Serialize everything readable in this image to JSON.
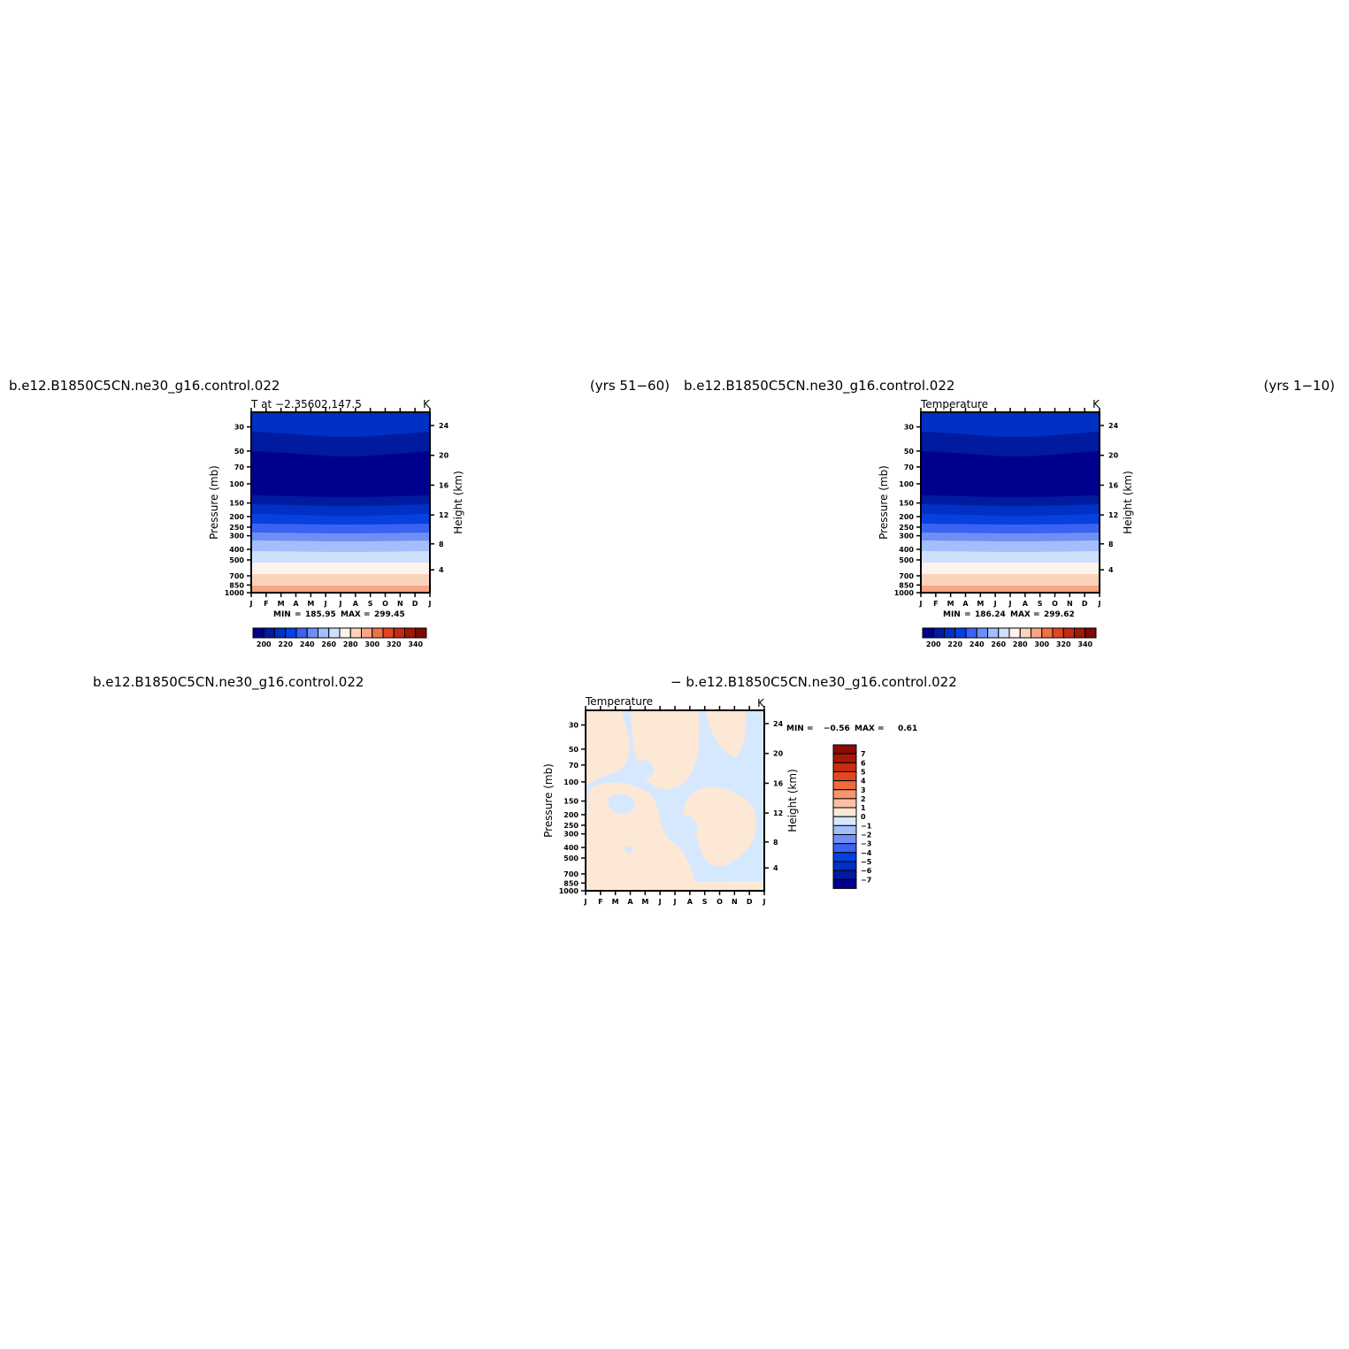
{
  "palette": {
    "abs": [
      "#00008e",
      "#001aa0",
      "#0030c4",
      "#0540e0",
      "#3b62f0",
      "#6e8ff6",
      "#a4bdfb",
      "#cfe0fd",
      "#fcf3ea",
      "#fbd2bc",
      "#f7a585",
      "#f07048",
      "#e0461f",
      "#c32a14",
      "#a01808",
      "#7d0a06"
    ],
    "diff": [
      "#00008e",
      "#001aa0",
      "#0030c4",
      "#0540e0",
      "#3b62f0",
      "#6e8ff6",
      "#a4bdfb",
      "#d6e8fd",
      "#fde8d6",
      "#fbc0a4",
      "#f7956d",
      "#f06a3e",
      "#e4471e",
      "#c82c12",
      "#a8190a",
      "#8a0b04"
    ]
  },
  "chart_data": [
    {
      "type": "heatmap",
      "title_left": "b.e12.B1850C5CN.ne30_g16.control.022",
      "title_right": "(yrs 51−60)",
      "subtitle": "T at −2.35602,147.5",
      "units": "K",
      "ylabel": "Pressure (mb)",
      "ylabel_right": "Height (km)",
      "x_ticks": [
        "J",
        "F",
        "M",
        "A",
        "M",
        "J",
        "J",
        "A",
        "S",
        "O",
        "N",
        "D",
        "J"
      ],
      "y_ticks": [
        30,
        50,
        70,
        100,
        150,
        200,
        250,
        300,
        400,
        500,
        700,
        850,
        1000
      ],
      "y_right_ticks": [
        4,
        8,
        12,
        16,
        20,
        24
      ],
      "ylim": [
        1000,
        22
      ],
      "min_label": "MIN",
      "min": "185.95",
      "max_label": "MAX",
      "max": "299.45",
      "colorbar_labels": [
        "200",
        "220",
        "240",
        "260",
        "280",
        "300",
        "320",
        "340"
      ]
    },
    {
      "type": "heatmap",
      "title_left": "b.e12.B1850C5CN.ne30_g16.control.022",
      "title_right": "(yrs 1−10)",
      "subtitle": "Temperature",
      "units": "K",
      "ylabel": "Pressure (mb)",
      "ylabel_right": "Height (km)",
      "x_ticks": [
        "J",
        "F",
        "M",
        "A",
        "M",
        "J",
        "J",
        "A",
        "S",
        "O",
        "N",
        "D",
        "J"
      ],
      "y_ticks": [
        30,
        50,
        70,
        100,
        150,
        200,
        250,
        300,
        400,
        500,
        700,
        850,
        1000
      ],
      "y_right_ticks": [
        4,
        8,
        12,
        16,
        20,
        24
      ],
      "ylim": [
        1000,
        22
      ],
      "min_label": "MIN",
      "min": "186.24",
      "max_label": "MAX",
      "max": "299.62",
      "colorbar_labels": [
        "200",
        "220",
        "240",
        "260",
        "280",
        "300",
        "320",
        "340"
      ]
    },
    {
      "type": "heatmap",
      "title_left": "b.e12.B1850C5CN.ne30_g16.control.022",
      "title_right": "− b.e12.B1850C5CN.ne30_g16.control.022",
      "subtitle": "Temperature",
      "units": "K",
      "ylabel": "Pressure (mb)",
      "ylabel_right": "Height (km)",
      "x_ticks": [
        "J",
        "F",
        "M",
        "A",
        "M",
        "J",
        "J",
        "A",
        "S",
        "O",
        "N",
        "D",
        "J"
      ],
      "y_ticks": [
        30,
        50,
        70,
        100,
        150,
        200,
        250,
        300,
        400,
        500,
        700,
        850,
        1000
      ],
      "y_right_ticks": [
        4,
        8,
        12,
        16,
        20,
        24
      ],
      "ylim": [
        1000,
        22
      ],
      "min_label": "MIN =",
      "min": "−0.56",
      "max_label": "MAX =",
      "max": "0.61",
      "colorbar_labels": [
        "7",
        "6",
        "5",
        "4",
        "3",
        "2",
        "1",
        "0",
        "−1",
        "−2",
        "−3",
        "−4",
        "−5",
        "−6",
        "−7"
      ]
    }
  ]
}
